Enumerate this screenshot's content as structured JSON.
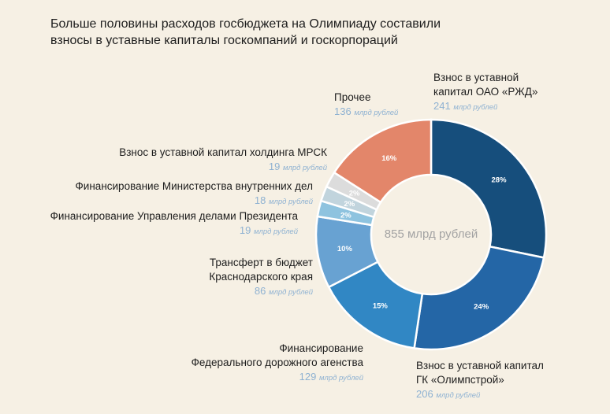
{
  "title_lines": [
    "Больше половины расходов госбюджета на Олимпиаду составили",
    "взносы в уставные капиталы госкомпаний и госкорпораций"
  ],
  "colors": {
    "background": "#f6f0e4",
    "value_text": "#8fb2d2"
  },
  "chart_data": {
    "type": "pie",
    "donut": true,
    "title": "Больше половины расходов госбюджета на Олимпиаду составили взносы в уставные капиталы госкомпаний и госкорпораций",
    "total_label": "855 млрд рублей",
    "unit": "млрд рублей",
    "slices": [
      {
        "label_lines": [
          "Взнос в уставной",
          "капитал ОАО «РЖД»"
        ],
        "value": 241,
        "value_text": "241",
        "percent": "28%",
        "color": "#164e7c"
      },
      {
        "label_lines": [
          "Взнос в уставной капитал",
          "ГК «Олимпстрой»"
        ],
        "value": 206,
        "value_text": "206",
        "percent": "24%",
        "color": "#2466a6"
      },
      {
        "label_lines": [
          "Финансирование",
          "Федерального дорожного агенства"
        ],
        "value": 129,
        "value_text": "129",
        "percent": "15%",
        "color": "#3187c4"
      },
      {
        "label_lines": [
          "Трансферт в бюджет",
          "Краснодарского края"
        ],
        "value": 86,
        "value_text": "86",
        "percent": "10%",
        "color": "#68a2d2"
      },
      {
        "label_lines": [
          "Финансирование Управления делами Президента"
        ],
        "value": 19,
        "value_text": "19",
        "percent": "2%",
        "color": "#8ec3df"
      },
      {
        "label_lines": [
          "Финансирование Министерства внутренних дел"
        ],
        "value": 18,
        "value_text": "18",
        "percent": "2%",
        "color": "#c1d4dd"
      },
      {
        "label_lines": [
          "Взнос в уставной капитал холдинга МРСК"
        ],
        "value": 19,
        "value_text": "19",
        "percent": "2%",
        "color": "#dcdcdc"
      },
      {
        "label_lines": [
          "Прочее"
        ],
        "value": 136,
        "value_text": "136",
        "percent": "16%",
        "color": "#e3866a"
      }
    ]
  }
}
